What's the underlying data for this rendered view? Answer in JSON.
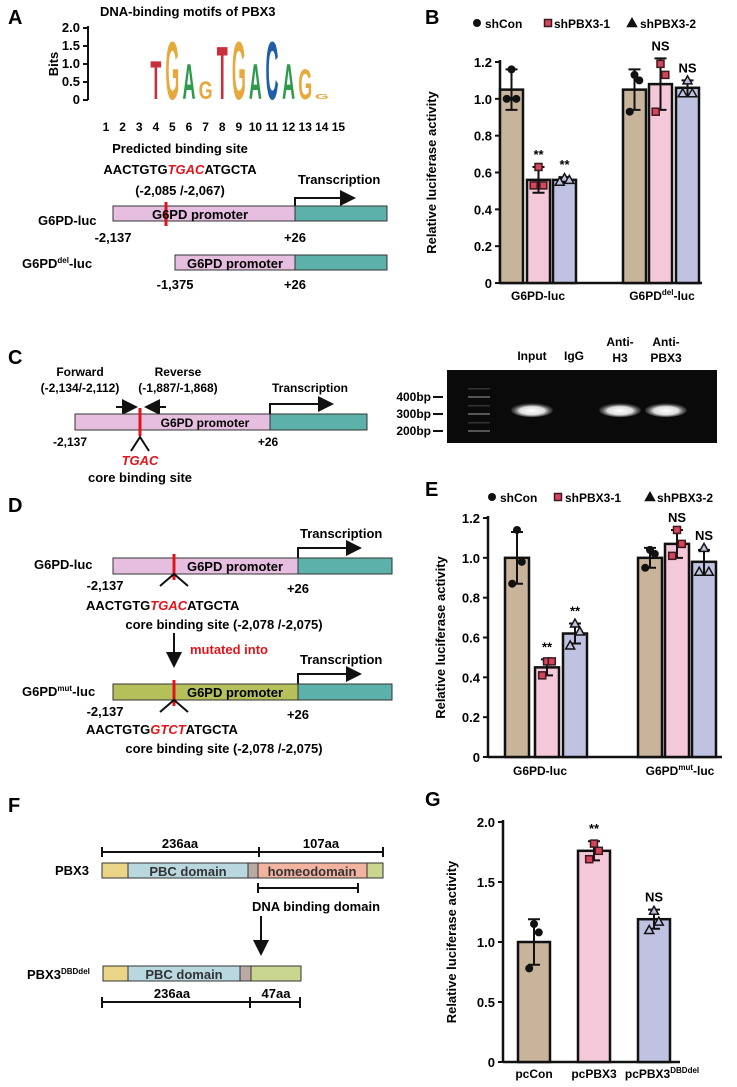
{
  "panels": {
    "A": {
      "label": "A",
      "logo": {
        "title": "DNA-binding motifs of PBX3",
        "ylabel": "Bits",
        "yticks": [
          "0",
          "0.5",
          "1.0",
          "1.5",
          "2.0"
        ],
        "positions": [
          "1",
          "2",
          "3",
          "4",
          "5",
          "6",
          "7",
          "8",
          "9",
          "10",
          "11",
          "12",
          "13",
          "14",
          "15"
        ],
        "letters": [
          {
            "letter": "T",
            "pos": 4,
            "bits": 1.1
          },
          {
            "letter": "G",
            "pos": 5,
            "bits": 1.65
          },
          {
            "letter": "A",
            "pos": 6,
            "bits": 1.0
          },
          {
            "letter": "G",
            "pos": 7,
            "bits": 0.5
          },
          {
            "letter": "T",
            "pos": 8,
            "bits": 1.5
          },
          {
            "letter": "G",
            "pos": 9,
            "bits": 1.65
          },
          {
            "letter": "A",
            "pos": 10,
            "bits": 1.0
          },
          {
            "letter": "C",
            "pos": 11,
            "bits": 1.65
          },
          {
            "letter": "A",
            "pos": 12,
            "bits": 1.0
          },
          {
            "letter": "G",
            "pos": 13,
            "bits": 0.85
          },
          {
            "letter": "G",
            "pos": 14,
            "bits": 0.15
          }
        ],
        "colors": {
          "T": "#c9303e",
          "G": "#e6a93c",
          "A": "#2e9a4c",
          "C": "#1f5ea8"
        }
      },
      "predicted_title": "Predicted binding site",
      "seq_left": "AACTGTG",
      "seq_core": "TGAC",
      "seq_right": "ATGCTA",
      "range": "(-2,085 /-2,067)",
      "transcription": "Transcription",
      "construct1": {
        "name": "G6PD-luc",
        "promoter": "G6PD promoter",
        "start": "-2,137",
        "end": "+26"
      },
      "construct2": {
        "name_base": "G6PD",
        "name_sup": "del",
        "name_suffix": "-luc",
        "promoter": "G6PD promoter",
        "start": "-1,375",
        "end": "+26"
      }
    },
    "B": {
      "label": "B"
    },
    "C": {
      "label": "C",
      "forward": "Forward",
      "forward_range": "(-2,134/-2,112)",
      "reverse": "Reverse",
      "reverse_range": "(-1,887/-1,868)",
      "transcription": "Transcription",
      "promoter": "G6PD promoter",
      "start": "-2,137",
      "end": "+26",
      "core": "TGAC",
      "core_label": "core binding site",
      "gel": {
        "lanes": [
          {
            "line1": "Input",
            "line2": "",
            "band": true
          },
          {
            "line1": "IgG",
            "line2": "",
            "band": false
          },
          {
            "line1": "Anti-",
            "line2": "H3",
            "band": true
          },
          {
            "line1": "Anti-",
            "line2": "PBX3",
            "band": true
          }
        ],
        "markers": [
          "400bp",
          "300bp",
          "200bp"
        ]
      }
    },
    "D": {
      "label": "D",
      "transcription": "Transcription",
      "promoter": "G6PD promoter",
      "start": "-2,137",
      "end": "+26",
      "wt": {
        "name": "G6PD-luc",
        "seq_left": "AACTGTG",
        "seq_core": "TGAC",
        "seq_right": "ATGCTA",
        "site": "core binding site (-2,078 /-2,075)"
      },
      "mutated_into": "mutated into",
      "mut": {
        "name_base": "G6PD",
        "name_sup": "mut",
        "name_suffix": "-luc",
        "seq_left": "AACTGTG",
        "seq_core": "GTCT",
        "seq_right": "ATGCTA",
        "site": "core binding site (-2,078 /-2,075)"
      }
    },
    "E": {
      "label": "E"
    },
    "F": {
      "label": "F",
      "full": {
        "name": "PBX3",
        "len1": "236aa",
        "len2": "107aa",
        "pbc": "PBC domain",
        "homeo": "homeodomain",
        "dbd": "DNA binding domain"
      },
      "del": {
        "name_base": "PBX3",
        "name_sup": "DBDdel",
        "pbc": "PBC domain",
        "len1": "236aa",
        "len2": "47aa"
      },
      "colors": {
        "nterm": "#ead488",
        "pbc": "#b9d7df",
        "linker": "#b9aaa4",
        "homeo": "#f2b3a0",
        "cterm": "#c9d68f"
      }
    },
    "G": {
      "label": "G"
    }
  },
  "chart_data": [
    {
      "id": "B",
      "type": "bar",
      "ylabel": "Relative luciferase activity",
      "ylim": [
        0,
        1.2
      ],
      "yticks": [
        "0",
        "0.2",
        "0.4",
        "0.6",
        "0.8",
        "1.0",
        "1.2"
      ],
      "categories": [
        {
          "base": "G6PD-luc",
          "sup": "",
          "suffix": ""
        },
        {
          "base": "G6PD",
          "sup": "del",
          "suffix": "-luc"
        }
      ],
      "series": [
        {
          "name": "shCon",
          "marker": "circle",
          "color": "#c8b49b",
          "values": [
            1.05,
            1.05
          ],
          "sd": [
            0.11,
            0.11
          ],
          "points": [
            [
              1.16,
              1.0,
              1.0
            ],
            [
              1.13,
              1.1,
              0.93
            ]
          ],
          "annotations": [
            "",
            ""
          ]
        },
        {
          "name": "shPBX3-1",
          "marker": "square",
          "color": "#f4c7d9",
          "values": [
            0.56,
            1.08
          ],
          "sd": [
            0.07,
            0.14
          ],
          "points": [
            [
              0.63,
              0.53,
              0.53
            ],
            [
              1.19,
              1.13,
              0.93
            ]
          ],
          "annotations": [
            "**",
            "NS"
          ]
        },
        {
          "name": "shPBX3-2",
          "marker": "triangle",
          "color": "#c0c2e1",
          "values": [
            0.56,
            1.06
          ],
          "sd": [
            0.015,
            0.04
          ],
          "points": [
            [
              0.57,
              0.56,
              0.55
            ],
            [
              1.1,
              1.03,
              1.03
            ]
          ],
          "annotations": [
            "**",
            "NS"
          ]
        }
      ],
      "legend": "top"
    },
    {
      "id": "E",
      "type": "bar",
      "ylabel": "Relative luciferase activity",
      "ylim": [
        0,
        1.2
      ],
      "yticks": [
        "0",
        "0.2",
        "0.4",
        "0.6",
        "0.8",
        "1.0",
        "1.2"
      ],
      "categories": [
        {
          "base": "G6PD-luc",
          "sup": "",
          "suffix": ""
        },
        {
          "base": "G6PD",
          "sup": "mut",
          "suffix": "-luc"
        }
      ],
      "series": [
        {
          "name": "shCon",
          "marker": "circle",
          "color": "#c8b49b",
          "values": [
            1.0,
            1.0
          ],
          "sd": [
            0.13,
            0.05
          ],
          "points": [
            [
              1.14,
              0.98,
              0.87
            ],
            [
              1.04,
              1.02,
              0.95
            ]
          ],
          "annotations": [
            "",
            ""
          ]
        },
        {
          "name": "shPBX3-1",
          "marker": "square",
          "color": "#f4c7d9",
          "values": [
            0.45,
            1.07
          ],
          "sd": [
            0.04,
            0.07
          ],
          "points": [
            [
              0.48,
              0.48,
              0.41
            ],
            [
              1.14,
              1.07,
              1.01
            ]
          ],
          "annotations": [
            "**",
            "NS"
          ]
        },
        {
          "name": "shPBX3-2",
          "marker": "triangle",
          "color": "#c0c2e1",
          "values": [
            0.62,
            0.98
          ],
          "sd": [
            0.05,
            0.06
          ],
          "points": [
            [
              0.67,
              0.63,
              0.56
            ],
            [
              1.05,
              0.93,
              0.93
            ]
          ],
          "annotations": [
            "**",
            "NS"
          ]
        }
      ],
      "legend": "top"
    },
    {
      "id": "G",
      "type": "bar",
      "ylabel": "Relative luciferase activity",
      "ylim": [
        0,
        2.0
      ],
      "yticks": [
        "0",
        "0.5",
        "1.0",
        "1.5",
        "2.0"
      ],
      "categories": [
        {
          "base": "pcCon",
          "sup": "",
          "suffix": ""
        },
        {
          "base": "pcPBX3",
          "sup": "",
          "suffix": ""
        },
        {
          "base": "pcPBX3",
          "sup": "DBDdel",
          "suffix": ""
        }
      ],
      "series": [
        {
          "name": "",
          "marker": [
            "circle",
            "square",
            "triangle"
          ],
          "color": [
            "#c8b49b",
            "#f4c7d9",
            "#c0c2e1"
          ],
          "values": [
            1.0,
            1.76,
            1.19
          ],
          "sd": [
            0.19,
            0.08,
            0.08
          ],
          "points": [
            [
              1.15,
              1.08,
              0.78
            ],
            [
              1.82,
              1.76,
              1.69
            ],
            [
              1.26,
              1.17,
              1.1
            ]
          ],
          "annotations": [
            "",
            "**",
            "NS"
          ]
        }
      ],
      "legend": "none"
    }
  ]
}
